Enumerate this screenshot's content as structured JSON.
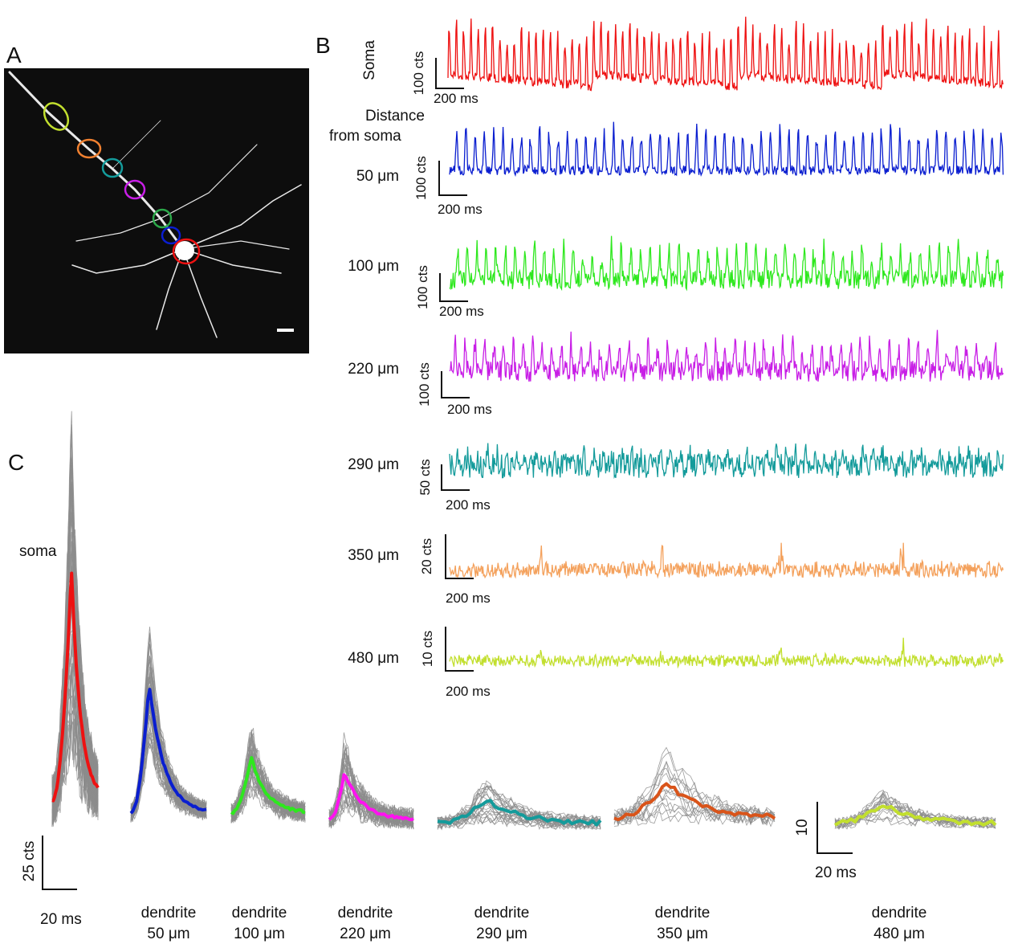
{
  "panel_labels": [
    "A",
    "B",
    "C"
  ],
  "panel_b": {
    "distance_header": [
      "Distance",
      "from soma"
    ],
    "rows": [
      {
        "label": "Soma",
        "color": "#ee1111",
        "scale_y": "100 cts",
        "scale_x": "200 ms"
      },
      {
        "label": "50 μm",
        "color": "#0a1ed0",
        "scale_y": "100 cts",
        "scale_x": "200 ms"
      },
      {
        "label": "100 μm",
        "color": "#2ee81e",
        "scale_y": "100 cts",
        "scale_x": "200 ms"
      },
      {
        "label": "220 μm",
        "color": "#c81ee6",
        "scale_y": "100 cts",
        "scale_x": "200 ms"
      },
      {
        "label": "290 μm",
        "color": "#149b9b",
        "scale_y": "50 cts",
        "scale_x": "200 ms"
      },
      {
        "label": "350 μm",
        "color": "#f4a15c",
        "scale_y": "20 cts",
        "scale_x": "200 ms"
      },
      {
        "label": "480 μm",
        "color": "#c2df2e",
        "scale_y": "10 cts",
        "scale_x": "200 ms"
      }
    ]
  },
  "panel_c": {
    "soma_label": "soma",
    "soma_color": "#ee1111",
    "scale_y": "25 cts",
    "scale_x": "20 ms",
    "dendrites": [
      {
        "line1": "dendrite",
        "line2": "50 μm",
        "color": "#0a1ed0"
      },
      {
        "line1": "dendrite",
        "line2": "100 μm",
        "color": "#2ee81e"
      },
      {
        "line1": "dendrite",
        "line2": "220 μm",
        "color": "#ff12f0"
      },
      {
        "line1": "dendrite",
        "line2": "290 μm",
        "color": "#149b9b"
      },
      {
        "line1": "dendrite",
        "line2": "350 μm",
        "color": "#d9541a"
      },
      {
        "line1": "dendrite",
        "line2": "480 μm",
        "color": "#c2df2e"
      }
    ],
    "last_scale_y": "10",
    "last_scale_x": "20 ms"
  }
}
